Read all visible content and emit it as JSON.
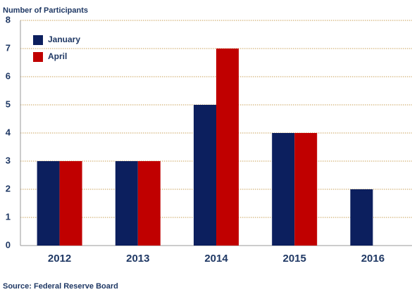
{
  "chart_data": {
    "type": "bar",
    "y_label": "Number of Participants",
    "source": "Source: Federal Reserve Board",
    "categories": [
      "2012",
      "2013",
      "2014",
      "2015",
      "2016"
    ],
    "series": [
      {
        "name": "January",
        "color": "#0c1f5e",
        "values": [
          3,
          3,
          5,
          4,
          2
        ]
      },
      {
        "name": "April",
        "color": "#c00000",
        "values": [
          3,
          3,
          7,
          4,
          null
        ]
      }
    ],
    "ylim": [
      0,
      8
    ],
    "yticks": [
      0,
      1,
      2,
      3,
      4,
      5,
      6,
      7,
      8
    ],
    "grid": true,
    "legend": "upper left"
  }
}
